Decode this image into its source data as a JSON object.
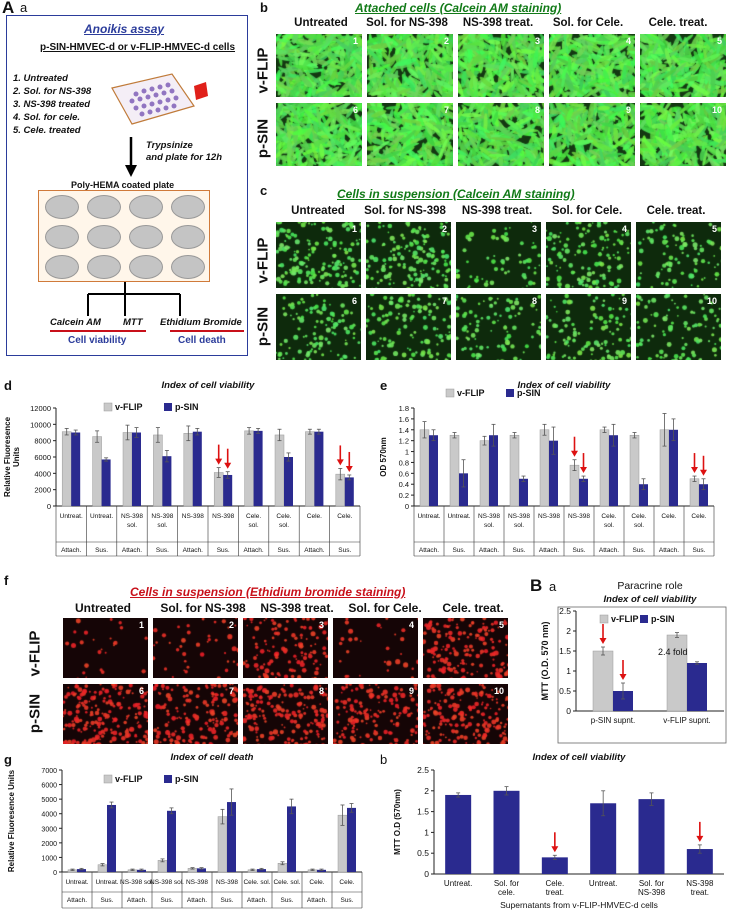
{
  "panel_A": {
    "letter": "A",
    "sub": "a",
    "title": "Anoikis assay",
    "subtitle": "p-SIN-HMVEC-d or v-FLIP-HMVEC-d cells",
    "treatments": [
      "1.  Untreated",
      "2.  Sol. for NS-398",
      "3.  NS-398 treated",
      "4.  Sol. for cele.",
      "5.  Cele. treated"
    ],
    "step": "Trypsinize\nand plate for 12h",
    "plate_title": "Poly-HEMA coated plate",
    "calcein": "Calcein AM",
    "mtt": "MTT",
    "ethidium": "Ethidium Bromide",
    "viability": "Cell viability",
    "death": "Cell death"
  },
  "panel_b": {
    "letter": "b",
    "title": "Attached cells (Calcein AM staining)",
    "columns": [
      "Untreated",
      "Sol. for NS-398",
      "NS-398 treat.",
      "Sol. for Cele.",
      "Cele. treat."
    ],
    "rows": [
      "v-FLIP",
      "p-SIN"
    ],
    "numbers": [
      "1",
      "2",
      "3",
      "4",
      "5",
      "6",
      "7",
      "8",
      "9",
      "10"
    ]
  },
  "panel_c": {
    "letter": "c",
    "title": "Cells in suspension (Calcein AM staining)",
    "columns": [
      "Untreated",
      "Sol. for NS-398",
      "NS-398 treat.",
      "Sol. for Cele.",
      "Cele. treat."
    ],
    "rows": [
      "v-FLIP",
      "p-SIN"
    ],
    "numbers": [
      "1",
      "2",
      "3",
      "4",
      "5",
      "6",
      "7",
      "8",
      "9",
      "10"
    ]
  },
  "panel_f": {
    "letter": "f",
    "title": "Cells in suspension (Ethidium bromide staining)",
    "columns": [
      "Untreated",
      "Sol. for NS-398",
      "NS-398 treat.",
      "Sol. for Cele.",
      "Cele. treat."
    ],
    "rows": [
      "v-FLIP",
      "p-SIN"
    ],
    "numbers": [
      "1",
      "2",
      "3",
      "4",
      "5",
      "6",
      "7",
      "8",
      "9",
      "10"
    ]
  },
  "colors": {
    "vflip": "#c9c9c9",
    "psin": "#2a2a8f",
    "arrow": "#dd1111",
    "green_stain": "#4be04b",
    "red_stain": "#e6262e"
  },
  "chart_data": [
    {
      "id": "d",
      "type": "bar",
      "title": "Index of cell viability",
      "ylabel": "Relative Fluoresence\nUnits",
      "ylim": [
        0,
        12000
      ],
      "yticks": [
        0,
        2000,
        4000,
        6000,
        8000,
        10000,
        12000
      ],
      "categories": [
        "Untreat.",
        "Untreat.",
        "NS-398\nsol.",
        "NS-398\nsol.",
        "NS-398",
        "NS-398",
        "Cele.\nsol.",
        "Cele.\nsol.",
        "Cele.",
        "Cele."
      ],
      "groups": [
        "Attach.",
        "Sus.",
        "Attach.",
        "Sus.",
        "Attach.",
        "Sus.",
        "Attach.",
        "Sus.",
        "Attach.",
        "Sus."
      ],
      "series": [
        {
          "name": "v-FLIP",
          "values": [
            9100,
            8500,
            9000,
            8700,
            8900,
            4100,
            9200,
            8700,
            9100,
            3900
          ],
          "errors": [
            400,
            700,
            900,
            900,
            900,
            600,
            400,
            700,
            300,
            700
          ]
        },
        {
          "name": "p-SIN",
          "values": [
            9000,
            5700,
            9000,
            6100,
            9100,
            3800,
            9200,
            6000,
            9100,
            3500
          ],
          "errors": [
            300,
            200,
            600,
            700,
            400,
            400,
            300,
            500,
            300,
            300
          ]
        }
      ],
      "arrows": [
        5,
        9
      ],
      "legend": "top-center"
    },
    {
      "id": "e",
      "type": "bar",
      "title": "Index of cell viability",
      "ylabel": "OD 570nm",
      "ylim": [
        0,
        1.8
      ],
      "yticks": [
        0,
        0.2,
        0.4,
        0.6,
        0.8,
        1,
        1.2,
        1.4,
        1.6,
        1.8
      ],
      "categories": [
        "Untreat.",
        "Untreat.",
        "NS-398\nsol.",
        "NS-398\nsol.",
        "NS-398",
        "NS-398",
        "Cele.\nsol.",
        "Cele.\nsol.",
        "Cele.",
        "Cele."
      ],
      "groups": [
        "Attach.",
        "Sus.",
        "Attach.",
        "Sus.",
        "Attach.",
        "Sus.",
        "Attach.",
        "Sus.",
        "Attach.",
        "Sus."
      ],
      "series": [
        {
          "name": "v-FLIP",
          "values": [
            1.4,
            1.3,
            1.2,
            1.3,
            1.4,
            0.75,
            1.4,
            1.3,
            1.4,
            0.5
          ],
          "errors": [
            0.15,
            0.05,
            0.08,
            0.05,
            0.1,
            0.1,
            0.05,
            0.05,
            0.3,
            0.05
          ]
        },
        {
          "name": "p-SIN",
          "values": [
            1.3,
            0.6,
            1.3,
            0.5,
            1.2,
            0.5,
            1.3,
            0.4,
            1.4,
            0.4
          ],
          "errors": [
            0.1,
            0.25,
            0.2,
            0.05,
            0.25,
            0.05,
            0.2,
            0.1,
            0.2,
            0.1
          ]
        }
      ],
      "arrows": [
        5,
        9
      ],
      "legend": "top-center"
    },
    {
      "id": "Ba",
      "type": "bar",
      "header": "Paracrine role",
      "title": "Index of cell viability",
      "ylabel": "MTT (O.D. 570 nm)",
      "ylim": [
        0,
        2.5
      ],
      "yticks": [
        0,
        0.5,
        1,
        1.5,
        2,
        2.5
      ],
      "categories": [
        "p-SIN supnt.",
        "v-FLIP supnt."
      ],
      "series": [
        {
          "name": "v-FLIP",
          "values": [
            1.5,
            1.9
          ],
          "errors": [
            0.1,
            0.06
          ]
        },
        {
          "name": "p-SIN",
          "values": [
            0.5,
            1.2
          ],
          "errors": [
            0.2,
            0.03
          ]
        }
      ],
      "annotation": "2.4 fold",
      "arrows": [
        0
      ],
      "legend": "top"
    },
    {
      "id": "g",
      "type": "bar",
      "title": "Index of cell death",
      "ylabel": "Relative Fluoresence Units",
      "ylim": [
        0,
        7000
      ],
      "yticks": [
        0,
        1000,
        2000,
        3000,
        4000,
        5000,
        6000,
        7000
      ],
      "categories": [
        "Untreat.",
        "Untreat.",
        "NS-398 sol.",
        "NS-398 sol.",
        "NS-398",
        "NS-398",
        "Cele. sol.",
        "Cele. sol.",
        "Cele.",
        "Cele."
      ],
      "groups": [
        "Attach.",
        "Sus.",
        "Attach.",
        "Sus.",
        "Attach.",
        "Sus.",
        "Attach.",
        "Sus.",
        "Attach.",
        "Sus."
      ],
      "series": [
        {
          "name": "v-FLIP",
          "values": [
            150,
            500,
            150,
            800,
            250,
            3800,
            150,
            600,
            150,
            3900
          ],
          "errors": [
            50,
            80,
            50,
            100,
            50,
            500,
            50,
            100,
            50,
            700
          ]
        },
        {
          "name": "p-SIN",
          "values": [
            200,
            4600,
            150,
            4200,
            250,
            4800,
            200,
            4500,
            150,
            4400
          ],
          "errors": [
            50,
            200,
            50,
            200,
            50,
            900,
            50,
            500,
            50,
            300
          ]
        }
      ],
      "legend": "top-left"
    },
    {
      "id": "Bb",
      "type": "bar",
      "sub": "b",
      "title": "Index of cell viability",
      "ylabel": "MTT O.D (570nm)",
      "xlabel": "Supernatants from v-FLIP-HMVEC-d cells",
      "ylim": [
        0,
        2.5
      ],
      "yticks": [
        0,
        0.5,
        1,
        1.5,
        2,
        2.5
      ],
      "categories": [
        "Untreat.",
        "Sol. for\ncele.",
        "Cele.\ntreat.",
        "Untreat.",
        "Sol. for\nNS-398",
        "NS-398\ntreat."
      ],
      "series": [
        {
          "name": "",
          "values": [
            1.9,
            2.0,
            0.4,
            1.7,
            1.8,
            0.6
          ],
          "errors": [
            0.05,
            0.1,
            0.05,
            0.3,
            0.15,
            0.1
          ]
        }
      ],
      "arrows": [
        2,
        5
      ]
    }
  ]
}
